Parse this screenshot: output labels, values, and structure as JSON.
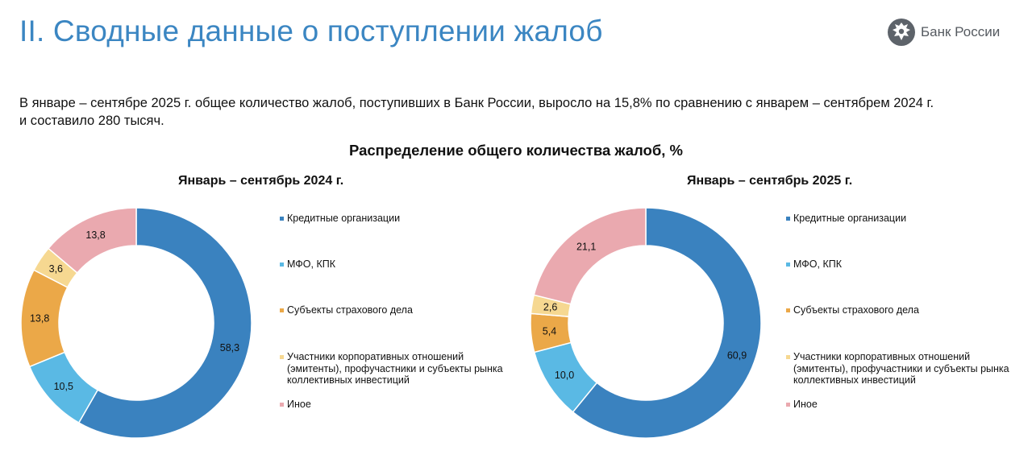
{
  "header": {
    "title": "II. Сводные данные о поступлении жалоб",
    "logo_text": "Банк России"
  },
  "summary": {
    "line1": "В январе – сентябре 2025 г. общее количество жалоб, поступивших в Банк России, выросло на 15,8% по сравнению с январем – сентябрем 2024 г.",
    "line2": "и составило 280 тысяч."
  },
  "colors": {
    "credit": "#3a82bf",
    "mfo": "#5ab9e4",
    "insurance": "#eba848",
    "corporate": "#f6d891",
    "other": "#eaa9af"
  },
  "chart_data": {
    "title": "Распределение общего количества жалоб, %",
    "type": "pie",
    "categories": [
      "Кредитные организации",
      "МФО, КПК",
      "Субъекты страхового дела",
      "Участники корпоративных отношений (эмитенты), профучастники и субъекты рынка коллективных инвестиций",
      "Иное"
    ],
    "charts": [
      {
        "subtitle": "Январь – сентябрь 2024 г.",
        "values": [
          58.3,
          10.5,
          13.8,
          3.6,
          13.8
        ],
        "labels": [
          "58,3",
          "10,5",
          "13,8",
          "3,6",
          "13,8"
        ]
      },
      {
        "subtitle": "Январь – сентябрь 2025 г.",
        "values": [
          60.9,
          10.0,
          5.4,
          2.6,
          21.1
        ],
        "labels": [
          "60,9",
          "10,0",
          "5,4",
          "2,6",
          "21,1"
        ]
      }
    ]
  },
  "legend": {
    "items": [
      {
        "lines": [
          "Кредитные организации"
        ]
      },
      {
        "lines": [
          "МФО, КПК"
        ]
      },
      {
        "lines": [
          "Субъекты страхового дела"
        ]
      },
      {
        "lines": [
          "Участники корпоративных отношений",
          "(эмитенты), профучастники и субъекты рынка",
          "коллективных инвестиций"
        ]
      },
      {
        "lines": [
          "Иное"
        ]
      }
    ]
  }
}
